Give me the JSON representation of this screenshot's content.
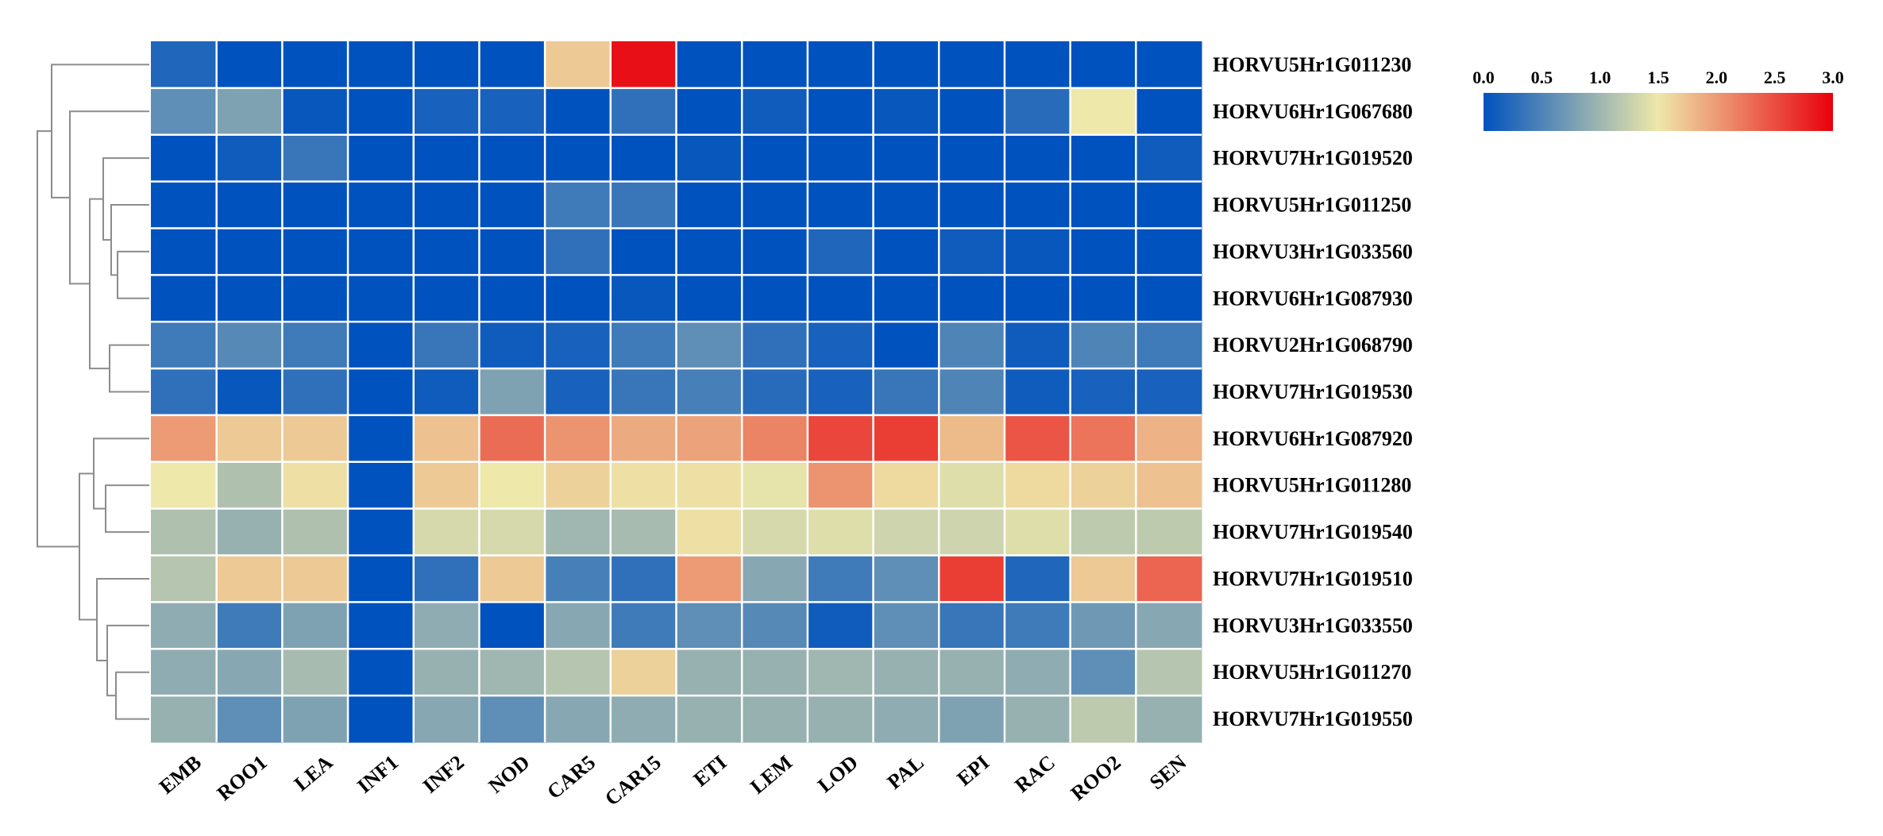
{
  "chart_data": {
    "type": "heatmap",
    "columns": [
      "EMB",
      "ROO1",
      "LEA",
      "INF1",
      "INF2",
      "NOD",
      "CAR5",
      "CAR15",
      "ETI",
      "LEM",
      "LOD",
      "PAL",
      "EPI",
      "RAC",
      "ROO2",
      "SEN"
    ],
    "rows": [
      "HORVU5Hr1G011230",
      "HORVU6Hr1G067680",
      "HORVU7Hr1G019520",
      "HORVU5Hr1G011250",
      "HORVU3Hr1G033560",
      "HORVU6Hr1G087930",
      "HORVU2Hr1G068790",
      "HORVU7Hr1G019530",
      "HORVU6Hr1G087920",
      "HORVU5Hr1G011280",
      "HORVU7Hr1G019540",
      "HORVU7Hr1G019510",
      "HORVU3Hr1G033550",
      "HORVU5Hr1G011270",
      "HORVU7Hr1G019550"
    ],
    "values": [
      [
        0.2,
        0.0,
        0.0,
        0.0,
        0.0,
        0.0,
        1.7,
        2.9,
        0.0,
        0.0,
        0.0,
        0.0,
        0.0,
        0.0,
        0.0,
        0.0
      ],
      [
        0.6,
        0.8,
        0.05,
        0.0,
        0.15,
        0.15,
        0.0,
        0.3,
        0.0,
        0.1,
        0.0,
        0.05,
        0.0,
        0.25,
        1.5,
        0.0
      ],
      [
        0.0,
        0.1,
        0.35,
        0.0,
        0.0,
        0.0,
        0.0,
        0.0,
        0.05,
        0.0,
        0.0,
        0.0,
        0.0,
        0.0,
        0.0,
        0.1
      ],
      [
        0.0,
        0.0,
        0.0,
        0.0,
        0.0,
        0.0,
        0.4,
        0.35,
        0.0,
        0.0,
        0.0,
        0.0,
        0.0,
        0.0,
        0.0,
        0.0
      ],
      [
        0.0,
        0.0,
        0.0,
        0.0,
        0.0,
        0.0,
        0.3,
        0.0,
        0.0,
        0.0,
        0.2,
        0.0,
        0.1,
        0.05,
        0.0,
        0.0
      ],
      [
        0.0,
        0.0,
        0.0,
        0.0,
        0.0,
        0.0,
        0.0,
        0.05,
        0.0,
        0.0,
        0.0,
        0.0,
        0.0,
        0.0,
        0.0,
        0.0
      ],
      [
        0.4,
        0.55,
        0.4,
        0.0,
        0.35,
        0.1,
        0.15,
        0.4,
        0.6,
        0.3,
        0.15,
        0.0,
        0.5,
        0.1,
        0.5,
        0.4
      ],
      [
        0.3,
        0.05,
        0.3,
        0.0,
        0.1,
        0.8,
        0.15,
        0.35,
        0.45,
        0.25,
        0.15,
        0.35,
        0.5,
        0.1,
        0.15,
        0.15
      ],
      [
        2.0,
        1.7,
        1.7,
        0.0,
        1.75,
        2.3,
        2.05,
        1.9,
        1.95,
        2.15,
        2.55,
        2.6,
        1.8,
        2.45,
        2.25,
        1.85
      ],
      [
        1.5,
        1.1,
        1.55,
        0.0,
        1.7,
        1.5,
        1.65,
        1.55,
        1.55,
        1.45,
        2.05,
        1.6,
        1.4,
        1.6,
        1.65,
        1.75
      ],
      [
        1.1,
        0.95,
        1.1,
        0.0,
        1.35,
        1.35,
        1.0,
        1.05,
        1.55,
        1.35,
        1.4,
        1.3,
        1.3,
        1.4,
        1.2,
        1.2
      ],
      [
        1.15,
        1.7,
        1.7,
        0.0,
        0.3,
        1.7,
        0.45,
        0.3,
        2.0,
        0.85,
        0.4,
        0.6,
        2.6,
        0.2,
        1.7,
        2.35
      ],
      [
        0.9,
        0.4,
        0.8,
        0.0,
        0.9,
        0.0,
        0.85,
        0.4,
        0.6,
        0.55,
        0.1,
        0.6,
        0.35,
        0.4,
        0.7,
        0.85
      ],
      [
        0.9,
        0.85,
        1.05,
        0.0,
        0.95,
        1.0,
        1.15,
        1.65,
        0.95,
        0.95,
        1.0,
        0.95,
        0.95,
        0.9,
        0.6,
        1.15
      ],
      [
        0.95,
        0.6,
        0.8,
        0.0,
        0.85,
        0.6,
        0.85,
        0.9,
        0.95,
        0.95,
        0.95,
        0.9,
        0.8,
        0.95,
        1.2,
        0.95
      ]
    ],
    "colorbar": {
      "range": [
        0.0,
        3.0
      ],
      "ticks": [
        "0.0",
        "0.5",
        "1.0",
        "1.5",
        "2.0",
        "2.5",
        "3.0"
      ],
      "colors": [
        "#0052be",
        "#eee8aa",
        "#e8000b"
      ]
    },
    "dendrogram": "row-clustering (left)",
    "title": "",
    "xlabel": "",
    "ylabel": ""
  }
}
